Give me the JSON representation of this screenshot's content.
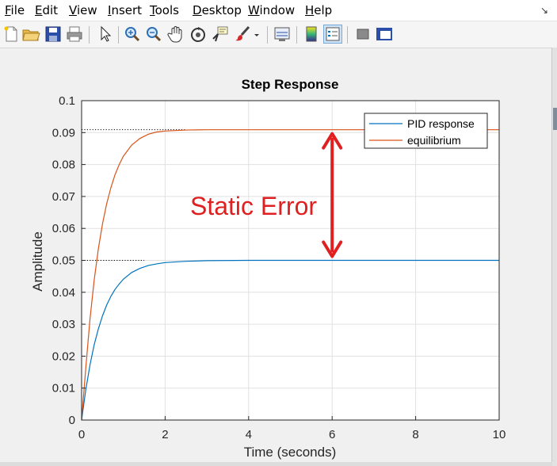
{
  "menu": {
    "items": [
      "File",
      "Edit",
      "View",
      "Insert",
      "Tools",
      "Desktop",
      "Window",
      "Help"
    ]
  },
  "toolbar": {
    "icons": [
      "new-file-icon",
      "open-folder-icon",
      "save-icon",
      "print-icon",
      "pointer-icon",
      "zoom-in-icon",
      "zoom-out-icon",
      "pan-hand-icon",
      "rotate-3d-icon",
      "data-cursor-icon",
      "brush-icon",
      "link-plot-icon",
      "colorbar-icon",
      "legend-icon",
      "hide-plot-tools-icon",
      "show-plot-tools-icon"
    ]
  },
  "colors": {
    "pid": "#0072bd",
    "equilibrium": "#d95319",
    "annotation": "#e02020"
  },
  "annotation": {
    "text": "Static Error"
  },
  "chart_data": {
    "type": "line",
    "title": "Step Response",
    "xlabel": "Time (seconds)",
    "ylabel": "Amplitude",
    "xlim": [
      0,
      10
    ],
    "ylim": [
      0,
      0.1
    ],
    "xticks": [
      "0",
      "2",
      "4",
      "6",
      "8",
      "10"
    ],
    "yticks": [
      "0",
      "0.01",
      "0.02",
      "0.03",
      "0.04",
      "0.05",
      "0.06",
      "0.07",
      "0.08",
      "0.09",
      "0.1"
    ],
    "grid": true,
    "legend_position": "top-right",
    "series": [
      {
        "name": "PID response",
        "color": "#0072bd",
        "x": [
          0,
          0.1,
          0.2,
          0.3,
          0.4,
          0.5,
          0.6,
          0.7,
          0.8,
          0.9,
          1.0,
          1.2,
          1.4,
          1.6,
          1.8,
          2.0,
          2.5,
          3.0,
          4.0,
          5.0,
          6.0,
          7.0,
          8.0,
          9.0,
          10.0
        ],
        "y": [
          0,
          0.0095,
          0.0172,
          0.0235,
          0.0285,
          0.0326,
          0.036,
          0.0387,
          0.0409,
          0.0426,
          0.0441,
          0.0462,
          0.0475,
          0.0484,
          0.0489,
          0.0493,
          0.0497,
          0.0499,
          0.05,
          0.05,
          0.05,
          0.05,
          0.05,
          0.05,
          0.05
        ]
      },
      {
        "name": "equilibrium",
        "color": "#d95319",
        "x": [
          0,
          0.1,
          0.2,
          0.3,
          0.4,
          0.5,
          0.6,
          0.7,
          0.8,
          0.9,
          1.0,
          1.2,
          1.4,
          1.6,
          1.8,
          2.0,
          2.5,
          3.0,
          4.0,
          5.0,
          6.0,
          7.0,
          8.0,
          9.0,
          10.0
        ],
        "y": [
          0,
          0.0163,
          0.0315,
          0.0437,
          0.0535,
          0.0614,
          0.0677,
          0.0727,
          0.0768,
          0.08,
          0.0826,
          0.0861,
          0.0882,
          0.0895,
          0.0902,
          0.0905,
          0.0908,
          0.0909,
          0.0909,
          0.0909,
          0.0909,
          0.0909,
          0.0909,
          0.0909,
          0.0909
        ]
      }
    ],
    "reference_lines": [
      {
        "y": 0.05,
        "x_to": 1.5,
        "style": "dotted"
      },
      {
        "y": 0.0909,
        "x_to": 2.5,
        "style": "dotted"
      }
    ],
    "annotations": [
      {
        "type": "double-arrow",
        "x": 6,
        "y_from": 0.05,
        "y_to": 0.0909,
        "text": "Static Error"
      }
    ]
  }
}
